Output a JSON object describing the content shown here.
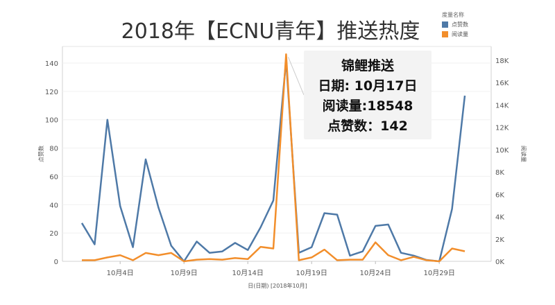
{
  "chart_data": {
    "type": "line",
    "title": "2018年【ECNU青年】推送热度",
    "xlabel": "日(日期) [2018年10月]",
    "ylabel_left": "点赞数",
    "ylabel_right": "阅读量",
    "x_ticks": [
      "10月4日",
      "10月9日",
      "10月14日",
      "10月19日",
      "10月24日",
      "10月29日"
    ],
    "x_tick_days": [
      4,
      9,
      14,
      19,
      24,
      29
    ],
    "y_left_ticks": [
      "0",
      "20",
      "40",
      "60",
      "80",
      "100",
      "120",
      "140"
    ],
    "y_right_ticks": [
      "0K",
      "2K",
      "4K",
      "6K",
      "8K",
      "10K",
      "12K",
      "14K",
      "16K",
      "18K"
    ],
    "ylim_left": [
      0,
      140
    ],
    "ylim_right": [
      0,
      18000
    ],
    "legend": {
      "title": "度量名称",
      "placement": "top-right",
      "entries": [
        {
          "name": "点赞数",
          "color": "#4e79a7"
        },
        {
          "name": "阅读量",
          "color": "#f28e2b"
        }
      ]
    },
    "x": [
      1,
      2,
      3,
      4,
      5,
      6,
      7,
      8,
      9,
      10,
      11,
      12,
      13,
      14,
      15,
      16,
      17,
      18,
      19,
      20,
      21,
      22,
      23,
      24,
      25,
      26,
      27,
      28,
      29,
      30,
      31
    ],
    "series": [
      {
        "name": "点赞数",
        "axis": "left",
        "color": "#4e79a7",
        "values": [
          27,
          12,
          100,
          39,
          10,
          72,
          38,
          11,
          0,
          14,
          6,
          7,
          13,
          8,
          24,
          43,
          142,
          6,
          10,
          34,
          33,
          4,
          7,
          25,
          26,
          6,
          4,
          1,
          0,
          37,
          117
        ]
      },
      {
        "name": "阅读量",
        "axis": "right",
        "color": "#f28e2b",
        "values": [
          100,
          100,
          350,
          550,
          100,
          750,
          550,
          750,
          0,
          150,
          200,
          150,
          300,
          200,
          1300,
          1150,
          18548,
          100,
          350,
          1050,
          100,
          150,
          150,
          1700,
          550,
          100,
          400,
          100,
          0,
          1150,
          900
        ]
      }
    ],
    "annotation": {
      "title": "锦鲤推送",
      "lines": [
        "日期: 10月17日",
        "阅读量:18548",
        "点赞数：142"
      ]
    },
    "grid": "horizontal"
  }
}
